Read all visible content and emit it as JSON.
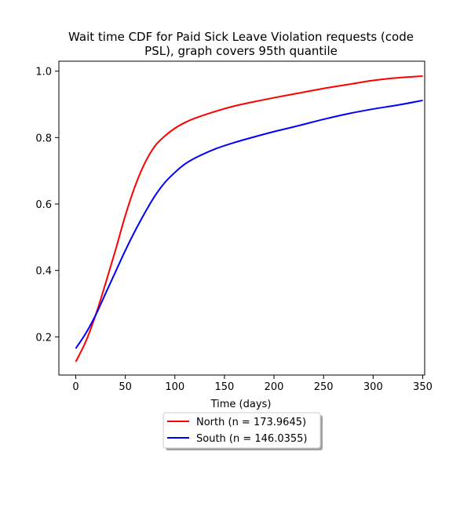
{
  "chart_data": {
    "type": "line",
    "title": "Wait time CDF for Paid Sick Leave Violation  requests (code PSL), graph covers 95th quantile",
    "title_lines": [
      "Wait time CDF for Paid Sick Leave Violation  requests (code",
      "PSL), graph covers 95th quantile"
    ],
    "xlabel": "Time (days)",
    "ylabel": "",
    "xlim": [
      -17,
      352
    ],
    "ylim": [
      0.085,
      1.03
    ],
    "xticks": [
      0,
      50,
      100,
      150,
      200,
      250,
      300,
      350
    ],
    "xtick_labels": [
      "0",
      "50",
      "100",
      "150",
      "200",
      "250",
      "300",
      "350"
    ],
    "yticks": [
      0.2,
      0.4,
      0.6,
      0.8,
      1.0
    ],
    "ytick_labels": [
      "0.2",
      "0.4",
      "0.6",
      "0.8",
      "1.0"
    ],
    "grid": false,
    "legend_position": "below-center",
    "series": [
      {
        "name": "North (n = 173.9645)",
        "color": "#ff0000",
        "x": [
          0,
          10,
          20,
          30,
          40,
          50,
          60,
          70,
          80,
          90,
          100,
          110,
          120,
          140,
          160,
          180,
          200,
          225,
          250,
          275,
          300,
          325,
          350
        ],
        "y": [
          0.125,
          0.185,
          0.265,
          0.36,
          0.46,
          0.565,
          0.655,
          0.725,
          0.775,
          0.805,
          0.828,
          0.845,
          0.858,
          0.878,
          0.895,
          0.908,
          0.92,
          0.934,
          0.948,
          0.96,
          0.972,
          0.98,
          0.985
        ]
      },
      {
        "name": "South (n = 146.0355)",
        "color": "#0000ff",
        "x": [
          0,
          10,
          20,
          30,
          40,
          50,
          60,
          70,
          80,
          90,
          100,
          110,
          120,
          140,
          160,
          180,
          200,
          225,
          250,
          275,
          300,
          325,
          350
        ],
        "y": [
          0.165,
          0.21,
          0.265,
          0.33,
          0.395,
          0.46,
          0.52,
          0.575,
          0.625,
          0.665,
          0.695,
          0.72,
          0.738,
          0.765,
          0.785,
          0.802,
          0.818,
          0.836,
          0.855,
          0.872,
          0.886,
          0.898,
          0.912
        ]
      }
    ]
  }
}
